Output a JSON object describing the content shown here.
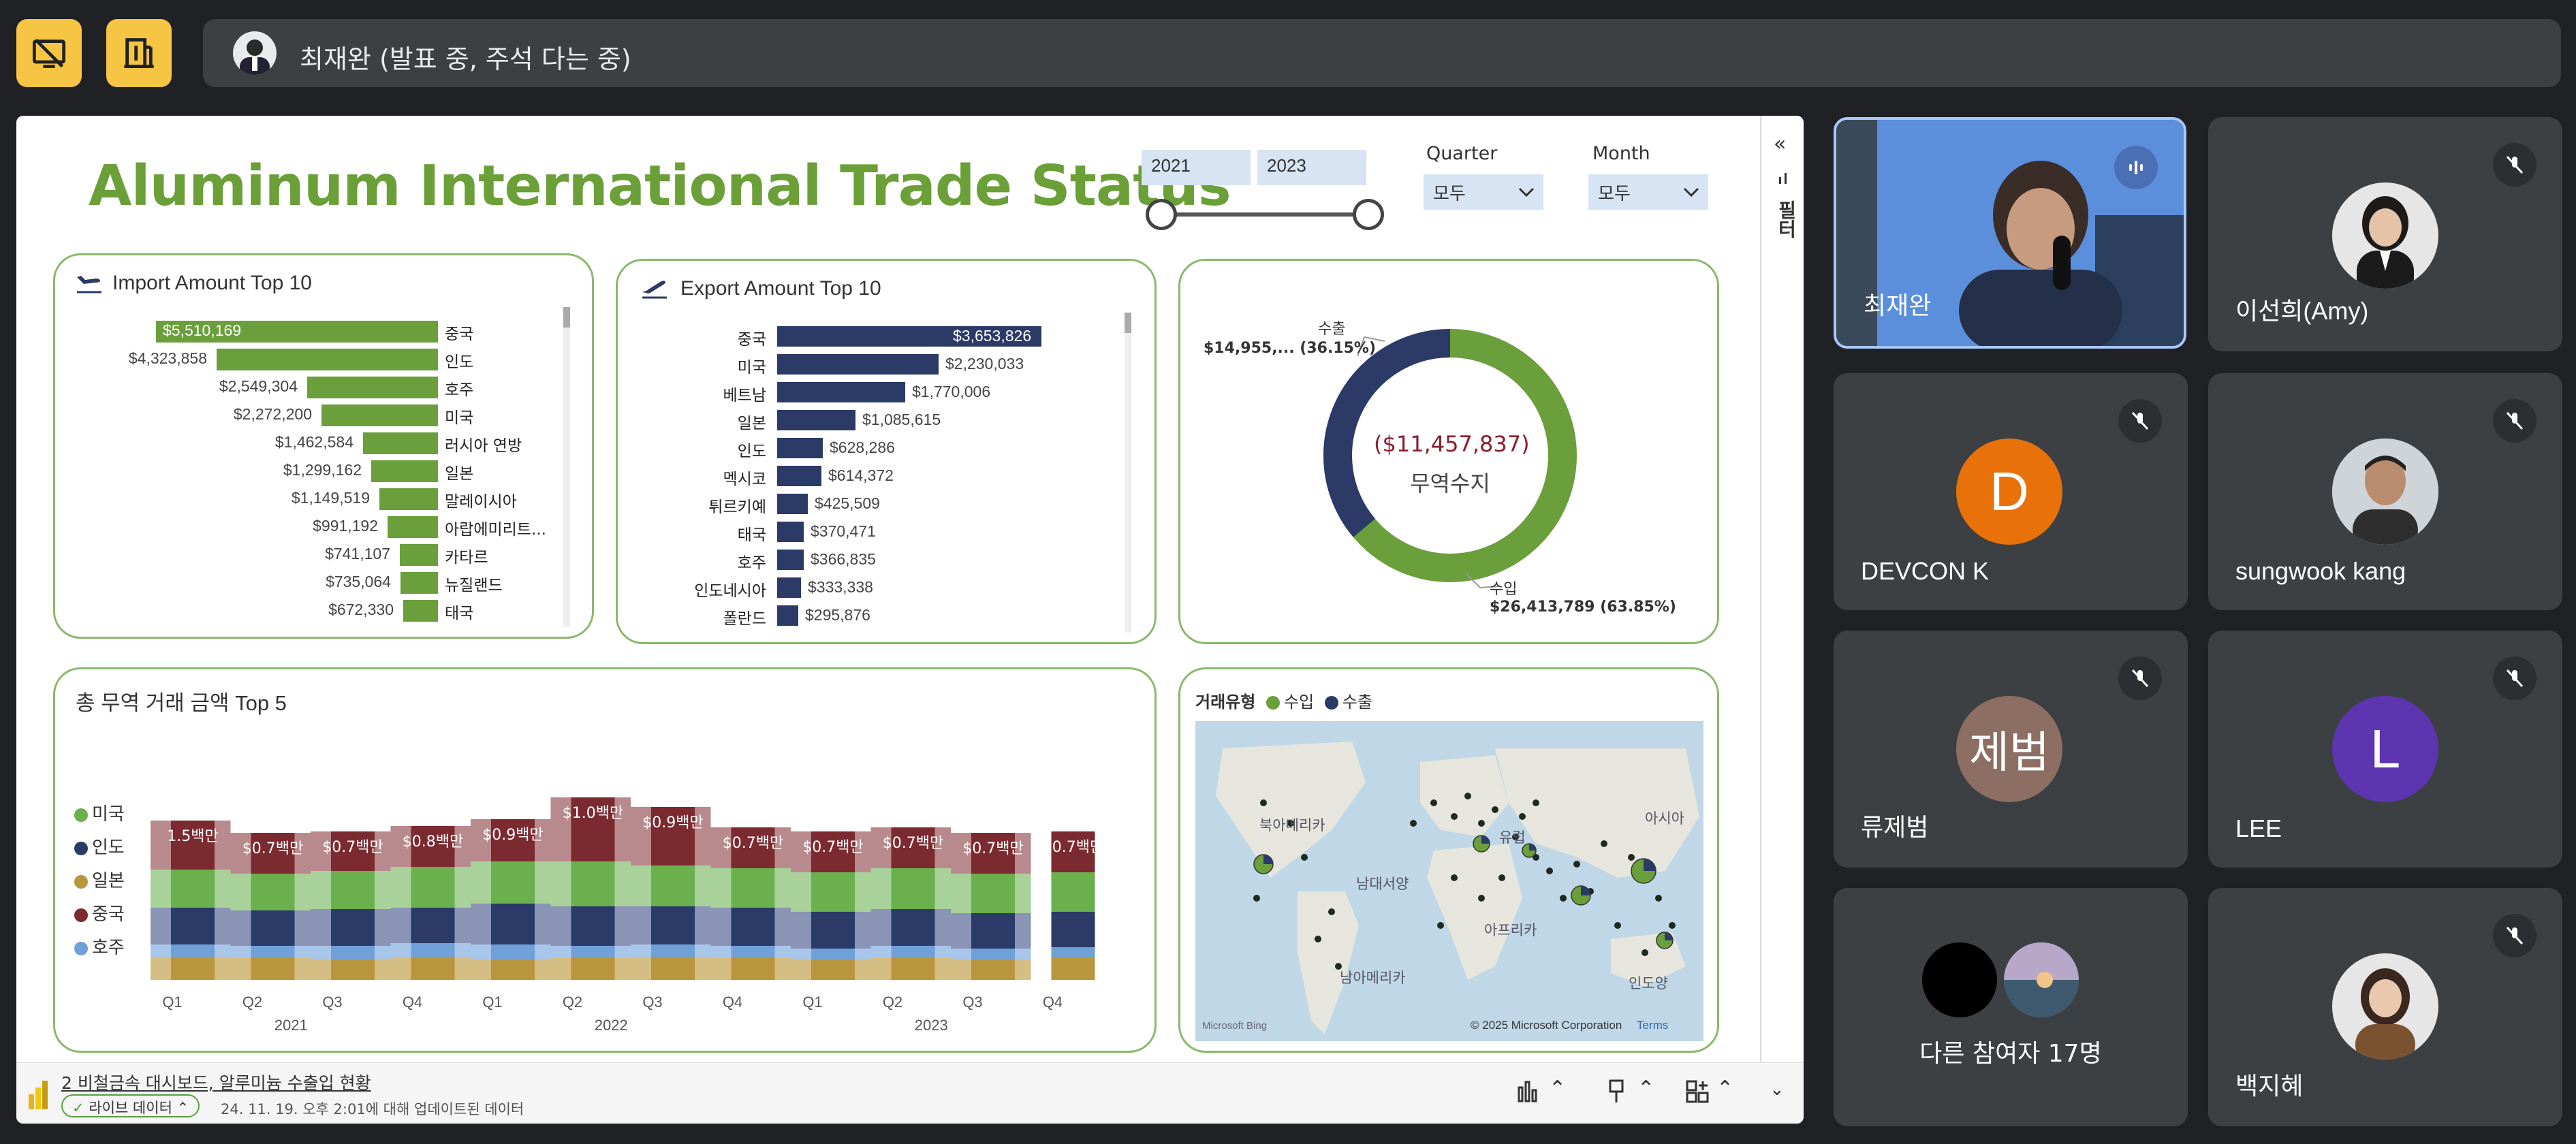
{
  "meeting": {
    "presenter_label": "최재완 (발표 중, 주석 다는 중)",
    "icons": [
      "present-off-icon",
      "building-icon"
    ]
  },
  "dashboard": {
    "title": "Aluminum International Trade Status",
    "year_from": "2021",
    "year_to": "2023",
    "quarter_label": "Quarter",
    "quarter_value": "모두",
    "month_label": "Month",
    "month_value": "모두",
    "side_label": "필터",
    "import_panel": {
      "title": "Import Amount Top 10",
      "rows": [
        {
          "country": "중국",
          "value": "$5,510,169",
          "amount": 5510169
        },
        {
          "country": "인도",
          "value": "$4,323,858",
          "amount": 4323858
        },
        {
          "country": "호주",
          "value": "$2,549,304",
          "amount": 2549304
        },
        {
          "country": "미국",
          "value": "$2,272,200",
          "amount": 2272200
        },
        {
          "country": "러시아 연방",
          "value": "$1,462,584",
          "amount": 1462584
        },
        {
          "country": "일본",
          "value": "$1,299,162",
          "amount": 1299162
        },
        {
          "country": "말레이시아",
          "value": "$1,149,519",
          "amount": 1149519
        },
        {
          "country": "아랍에미리트...",
          "value": "$991,192",
          "amount": 991192
        },
        {
          "country": "카타르",
          "value": "$741,107",
          "amount": 741107
        },
        {
          "country": "뉴질랜드",
          "value": "$735,064",
          "amount": 735064
        },
        {
          "country": "태국",
          "value": "$672,330",
          "amount": 672330
        }
      ]
    },
    "export_panel": {
      "title": "Export Amount Top 10",
      "rows": [
        {
          "country": "중국",
          "value": "$3,653,826",
          "amount": 3653826
        },
        {
          "country": "미국",
          "value": "$2,230,033",
          "amount": 2230033
        },
        {
          "country": "베트남",
          "value": "$1,770,006",
          "amount": 1770006
        },
        {
          "country": "일본",
          "value": "$1,085,615",
          "amount": 1085615
        },
        {
          "country": "인도",
          "value": "$628,286",
          "amount": 628286
        },
        {
          "country": "멕시코",
          "value": "$614,372",
          "amount": 614372
        },
        {
          "country": "튀르키예",
          "value": "$425,509",
          "amount": 425509
        },
        {
          "country": "태국",
          "value": "$370,471",
          "amount": 370471
        },
        {
          "country": "호주",
          "value": "$366,835",
          "amount": 366835
        },
        {
          "country": "인도네시아",
          "value": "$333,338",
          "amount": 333338
        },
        {
          "country": "폴란드",
          "value": "$295,876",
          "amount": 295876
        }
      ]
    },
    "donut": {
      "center_value": "($11,457,837)",
      "center_label": "무역수지",
      "export_label": "수출",
      "export_value": "$14,955,... (36.15%)",
      "import_label": "수입",
      "import_value": "$26,413,789 (63.85%)",
      "colors": {
        "import": "#6a9f3c",
        "export": "#2b3a67"
      }
    },
    "ribbon": {
      "title": "총 무역 거래 금액 Top 5",
      "legend": [
        {
          "name": "미국",
          "color": "#6ab04c"
        },
        {
          "name": "인도",
          "color": "#2b3a67"
        },
        {
          "name": "일본",
          "color": "#b8963e"
        },
        {
          "name": "중국",
          "color": "#7b2a2f"
        },
        {
          "name": "호주",
          "color": "#6fa0d8"
        }
      ],
      "quarters": [
        "Q1",
        "Q2",
        "Q3",
        "Q4",
        "Q1",
        "Q2",
        "Q3",
        "Q4",
        "Q1",
        "Q2",
        "Q3",
        "Q4"
      ],
      "years": [
        "2021",
        "2022",
        "2023"
      ],
      "totals": [
        "1.5백만",
        "$0.7백만",
        "$0.7백만",
        "$0.8백만",
        "$0.9백만",
        "$1.0백만",
        "$0.9백만",
        "$0.7백만",
        "$0.7백만",
        "$0.7백만",
        "$0.7백만",
        "$0.7백만"
      ]
    },
    "map": {
      "legend_title": "거래유형",
      "legend_import": "수입",
      "legend_export": "수출",
      "labels": [
        "북아메리카",
        "남대서양",
        "남아메리카",
        "유럽",
        "아프리카",
        "아시아",
        "인도양"
      ],
      "copyright": "© 2025 Microsoft Corporation",
      "terms": "Terms",
      "brand": "Microsoft Bing"
    },
    "footer": {
      "report_name": "2 비철금속 대시보드, 알루미늄 수출입 현황",
      "live_label": "라이브 데이터",
      "updated": "24. 11. 19. 오후 2:01에 대해 업데이트된 데이터"
    }
  },
  "participants": [
    {
      "name": "최재완",
      "speaking": true
    },
    {
      "name": "이선희(Amy)",
      "muted": true
    },
    {
      "name": "DEVCON K",
      "initial": "D",
      "color": "#e8710a",
      "muted": true
    },
    {
      "name": "sungwook kang",
      "muted": true
    },
    {
      "name": "류제범",
      "initial": "제범",
      "color": "#8d6e63",
      "muted": true
    },
    {
      "name": "LEE",
      "initial": "L",
      "color": "#5e35b1",
      "muted": true
    },
    {
      "name": "다른 참여자 17명"
    },
    {
      "name": "백지혜",
      "muted": true
    }
  ]
}
